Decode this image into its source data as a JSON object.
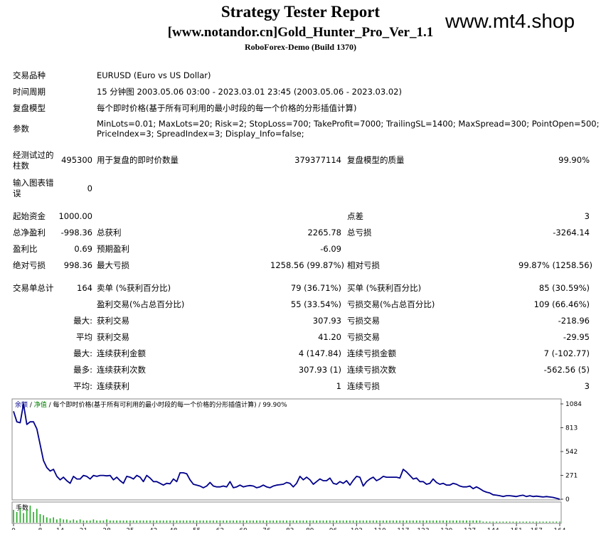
{
  "header": {
    "title": "Strategy Tester Report",
    "subtitle": "[www.notandor.cn]Gold_Hunter_Pro_Ver_1.1",
    "build": "RoboForex-Demo (Build 1370)",
    "watermark": "www.mt4.shop"
  },
  "info": [
    {
      "label": "交易品种",
      "value": "EURUSD (Euro vs US Dollar)"
    },
    {
      "label": "时间周期",
      "value": "15 分钟图 2003.05.06 03:00 - 2023.03.01 23:45 (2003.05.06 - 2023.03.02)"
    },
    {
      "label": "复盘模型",
      "value": "每个即时价格(基于所有可利用的最小时段的每一个价格的分形插值计算)"
    },
    {
      "label": "参数",
      "value_line1": "MinLots=0.01; MaxLots=20; Risk=2; StopLoss=700; TakeProfit=7000; TrailingSL=1400; MaxSpread=300; PointOpen=500;",
      "value_line2": "PriceIndex=3; SpreadIndex=3; Display_Info=false;"
    }
  ],
  "bars": {
    "label_line1": "经测试过的",
    "label_line2": "柱数",
    "value": "495300",
    "ticks_label": "用于复盘的即时价数量",
    "ticks_value": "379377114",
    "quality_label": "复盘模型的质量",
    "quality_value": "99.90%"
  },
  "errors": {
    "label_line1": "输入图表错",
    "label_line2": "误",
    "value": "0"
  },
  "stats": {
    "deposit_label": "起始资金",
    "deposit": "1000.00",
    "spread_label": "点差",
    "spread": "3",
    "net_label": "总净盈利",
    "net": "-998.36",
    "gross_profit_label": "总获利",
    "gross_profit": "2265.78",
    "gross_loss_label": "总亏损",
    "gross_loss": "-3264.14",
    "pf_label": "盈利比",
    "pf": "0.69",
    "expected_label": "预期盈利",
    "expected": "-6.09",
    "abs_dd_label": "绝对亏损",
    "abs_dd": "998.36",
    "max_dd_label": "最大亏损",
    "max_dd": "1258.56 (99.87%)",
    "rel_dd_label": "相对亏损",
    "rel_dd": "99.87% (1258.56)"
  },
  "trades": {
    "total_label": "交易单总计",
    "total": "164",
    "short_label": "卖单 (%获利百分比)",
    "short": "79 (36.71%)",
    "long_label": "买单 (%获利百分比)",
    "long": "85 (30.59%)",
    "profit_trades_label": "盈利交易(%占总百分比)",
    "profit_trades": "55 (33.54%)",
    "loss_trades_label": "亏损交易(%占总百分比)",
    "loss_trades": "109 (66.46%)",
    "rows": [
      {
        "prefix": "最大:",
        "a_label": "获利交易",
        "a_value": "307.93",
        "b_label": "亏损交易",
        "b_value": "-218.96"
      },
      {
        "prefix": "平均",
        "a_label": "获利交易",
        "a_value": "41.20",
        "b_label": "亏损交易",
        "b_value": "-29.95"
      },
      {
        "prefix": "最大:",
        "a_label": "连续获利金额",
        "a_value": "4 (147.84)",
        "b_label": "连续亏损金额",
        "b_value": "7 (-102.77)"
      },
      {
        "prefix": "最多:",
        "a_label": "连续获利次数",
        "a_value": "307.93 (1)",
        "b_label": "连续亏损次数",
        "b_value": "-562.56 (5)"
      },
      {
        "prefix": "平均:",
        "a_label": "连续获利",
        "a_value": "1",
        "b_label": "连续亏损",
        "b_value": "3"
      }
    ]
  },
  "chart_data": {
    "type": "line",
    "legend": {
      "balance": "余额",
      "sep1": " / ",
      "equity": "净值",
      "rest": " / 每个即时价格(基于所有可利用的最小时段的每一个价格的分形插值计算) / 99.90%"
    },
    "volume_label": "手数",
    "y_ticks": [
      "1084",
      "813",
      "542",
      "271",
      "0"
    ],
    "x_ticks": [
      "0",
      "8",
      "14",
      "21",
      "28",
      "35",
      "42",
      "48",
      "55",
      "62",
      "69",
      "76",
      "83",
      "89",
      "96",
      "103",
      "110",
      "117",
      "123",
      "130",
      "137",
      "144",
      "151",
      "157",
      "164"
    ],
    "xlim": [
      0,
      164
    ],
    "ylim": [
      0,
      1084
    ],
    "balance": [
      [
        0,
        1000
      ],
      [
        1,
        880
      ],
      [
        2,
        870
      ],
      [
        3,
        1084
      ],
      [
        4,
        850
      ],
      [
        5,
        880
      ],
      [
        6,
        880
      ],
      [
        7,
        800
      ],
      [
        8,
        620
      ],
      [
        9,
        440
      ],
      [
        10,
        360
      ],
      [
        11,
        320
      ],
      [
        12,
        340
      ],
      [
        13,
        260
      ],
      [
        14,
        220
      ],
      [
        15,
        250
      ],
      [
        16,
        210
      ],
      [
        17,
        180
      ],
      [
        18,
        260
      ],
      [
        19,
        230
      ],
      [
        20,
        230
      ],
      [
        21,
        270
      ],
      [
        22,
        260
      ],
      [
        23,
        230
      ],
      [
        24,
        270
      ],
      [
        25,
        260
      ],
      [
        26,
        270
      ],
      [
        27,
        270
      ],
      [
        28,
        265
      ],
      [
        29,
        270
      ],
      [
        30,
        220
      ],
      [
        31,
        250
      ],
      [
        32,
        210
      ],
      [
        33,
        180
      ],
      [
        34,
        260
      ],
      [
        35,
        250
      ],
      [
        36,
        230
      ],
      [
        37,
        270
      ],
      [
        38,
        250
      ],
      [
        39,
        200
      ],
      [
        40,
        270
      ],
      [
        41,
        240
      ],
      [
        42,
        200
      ],
      [
        43,
        200
      ],
      [
        44,
        180
      ],
      [
        45,
        160
      ],
      [
        46,
        180
      ],
      [
        47,
        175
      ],
      [
        48,
        230
      ],
      [
        49,
        200
      ],
      [
        50,
        300
      ],
      [
        51,
        300
      ],
      [
        52,
        290
      ],
      [
        53,
        220
      ],
      [
        54,
        170
      ],
      [
        55,
        160
      ],
      [
        56,
        150
      ],
      [
        57,
        130
      ],
      [
        58,
        150
      ],
      [
        59,
        190
      ],
      [
        60,
        150
      ],
      [
        61,
        140
      ],
      [
        62,
        140
      ],
      [
        63,
        150
      ],
      [
        64,
        140
      ],
      [
        65,
        200
      ],
      [
        66,
        130
      ],
      [
        67,
        140
      ],
      [
        68,
        160
      ],
      [
        69,
        140
      ],
      [
        70,
        150
      ],
      [
        71,
        155
      ],
      [
        72,
        150
      ],
      [
        73,
        130
      ],
      [
        74,
        140
      ],
      [
        75,
        160
      ],
      [
        76,
        140
      ],
      [
        77,
        130
      ],
      [
        78,
        150
      ],
      [
        79,
        160
      ],
      [
        80,
        165
      ],
      [
        81,
        170
      ],
      [
        82,
        190
      ],
      [
        83,
        180
      ],
      [
        84,
        140
      ],
      [
        85,
        180
      ],
      [
        86,
        260
      ],
      [
        87,
        220
      ],
      [
        88,
        250
      ],
      [
        89,
        220
      ],
      [
        90,
        170
      ],
      [
        91,
        200
      ],
      [
        92,
        230
      ],
      [
        93,
        210
      ],
      [
        94,
        210
      ],
      [
        95,
        240
      ],
      [
        96,
        180
      ],
      [
        97,
        170
      ],
      [
        98,
        200
      ],
      [
        99,
        180
      ],
      [
        100,
        210
      ],
      [
        101,
        160
      ],
      [
        102,
        215
      ],
      [
        103,
        260
      ],
      [
        104,
        250
      ],
      [
        105,
        150
      ],
      [
        106,
        200
      ],
      [
        107,
        230
      ],
      [
        108,
        250
      ],
      [
        109,
        210
      ],
      [
        110,
        230
      ],
      [
        111,
        260
      ],
      [
        112,
        250
      ],
      [
        113,
        250
      ],
      [
        114,
        250
      ],
      [
        115,
        250
      ],
      [
        116,
        240
      ],
      [
        117,
        340
      ],
      [
        118,
        310
      ],
      [
        119,
        270
      ],
      [
        120,
        230
      ],
      [
        121,
        240
      ],
      [
        122,
        200
      ],
      [
        123,
        200
      ],
      [
        124,
        170
      ],
      [
        125,
        180
      ],
      [
        126,
        230
      ],
      [
        127,
        190
      ],
      [
        128,
        170
      ],
      [
        129,
        180
      ],
      [
        130,
        160
      ],
      [
        131,
        160
      ],
      [
        132,
        180
      ],
      [
        133,
        170
      ],
      [
        134,
        150
      ],
      [
        135,
        140
      ],
      [
        136,
        140
      ],
      [
        137,
        150
      ],
      [
        138,
        120
      ],
      [
        139,
        140
      ],
      [
        140,
        120
      ],
      [
        141,
        95
      ],
      [
        142,
        80
      ],
      [
        143,
        70
      ],
      [
        144,
        50
      ],
      [
        145,
        45
      ],
      [
        146,
        40
      ],
      [
        147,
        30
      ],
      [
        148,
        40
      ],
      [
        149,
        40
      ],
      [
        150,
        35
      ],
      [
        151,
        30
      ],
      [
        152,
        40
      ],
      [
        153,
        45
      ],
      [
        154,
        30
      ],
      [
        155,
        40
      ],
      [
        156,
        30
      ],
      [
        157,
        35
      ],
      [
        158,
        30
      ],
      [
        159,
        25
      ],
      [
        160,
        30
      ],
      [
        161,
        25
      ],
      [
        162,
        20
      ],
      [
        163,
        10
      ],
      [
        164,
        0
      ]
    ],
    "volume": [
      12,
      10,
      14,
      9,
      12,
      16,
      10,
      13,
      8,
      7,
      5,
      4,
      5,
      3,
      4,
      3,
      3,
      2,
      3,
      2,
      3,
      2,
      2,
      2,
      3,
      2,
      2,
      2,
      3,
      2,
      2,
      2,
      2,
      2,
      2,
      2,
      2,
      2,
      2,
      2,
      2,
      2,
      2,
      2,
      2,
      2,
      2,
      2,
      2,
      2,
      2,
      2,
      2,
      2,
      2,
      2,
      2,
      2,
      2,
      2,
      2,
      2,
      2,
      2,
      2,
      2,
      2,
      2,
      2,
      2,
      2,
      2,
      2,
      2,
      2,
      2,
      2,
      2,
      2,
      2,
      2,
      2,
      2,
      2,
      2,
      2,
      2,
      2,
      2,
      2,
      2,
      2,
      2,
      2,
      2,
      2,
      2,
      2,
      2,
      2,
      2,
      2,
      2,
      2,
      2,
      2,
      2,
      2,
      2,
      2,
      2,
      2,
      2,
      2,
      2,
      2,
      2,
      2,
      2,
      2,
      2,
      2,
      2,
      2,
      2,
      2,
      2,
      2,
      2,
      2,
      2,
      2,
      2,
      2,
      2,
      2,
      2,
      2,
      2,
      2,
      2,
      1,
      1,
      1,
      1,
      1,
      1,
      1,
      1,
      1,
      1,
      1,
      1,
      1,
      1,
      1,
      1,
      1,
      1,
      1,
      1,
      1,
      1,
      1,
      1
    ]
  }
}
